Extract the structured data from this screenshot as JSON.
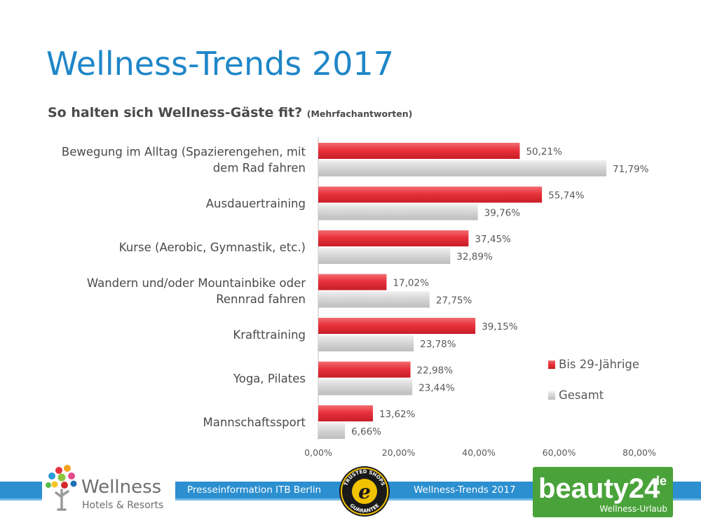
{
  "header": {
    "title": "Wellness-Trends 2017",
    "subtitle": "So halten sich Wellness-Gäste fit?",
    "subtitle_note": "(Mehrfachantworten)"
  },
  "chart_data": {
    "type": "bar",
    "orientation": "horizontal",
    "categories": [
      [
        "Bewegung im Alltag (Spazierengehen, mit",
        "dem Rad fahren"
      ],
      [
        "Ausdauertraining"
      ],
      [
        "Kurse (Aerobic, Gymnastik, etc.)"
      ],
      [
        "Wandern und/oder Mountainbike oder",
        "Rennrad fahren"
      ],
      [
        "Krafttraining"
      ],
      [
        "Yoga, Pilates"
      ],
      [
        "Mannschaftssport"
      ]
    ],
    "series": [
      {
        "name": "Bis 29-Jährige",
        "color": "#e8323c",
        "values": [
          50.21,
          55.74,
          37.45,
          17.02,
          39.15,
          22.98,
          13.62
        ],
        "labels": [
          "50,21%",
          "55,74%",
          "37,45%",
          "17,02%",
          "39,15%",
          "22,98%",
          "13,62%"
        ]
      },
      {
        "name": "Gesamt",
        "color": "#cfcfcf",
        "values": [
          71.79,
          39.76,
          32.89,
          27.75,
          23.78,
          23.44,
          6.66
        ],
        "labels": [
          "71,79%",
          "39,76%",
          "32,89%",
          "27,75%",
          "23,78%",
          "23,44%",
          "6,66%"
        ]
      }
    ],
    "xlim": [
      0,
      80
    ],
    "xticks": [
      0,
      20,
      40,
      60,
      80
    ],
    "xtick_labels": [
      "0,00%",
      "20,00%",
      "40,00%",
      "60,00%",
      "80,00%"
    ],
    "grid": false,
    "legend_position": "right"
  },
  "footer": {
    "press_text": "Presseinformation ITB Berlin",
    "trend_text": "Wellness-Trends 2017",
    "logo_left_name": "Wellness",
    "logo_left_sub": "Hotels & Resorts",
    "seal_top": "TRUSTED SHOPS",
    "seal_bottom": "GUARANTEE",
    "logo_right_name": "beauty24",
    "logo_right_tld": ".de",
    "logo_right_sub": "Wellness-Urlaub"
  }
}
